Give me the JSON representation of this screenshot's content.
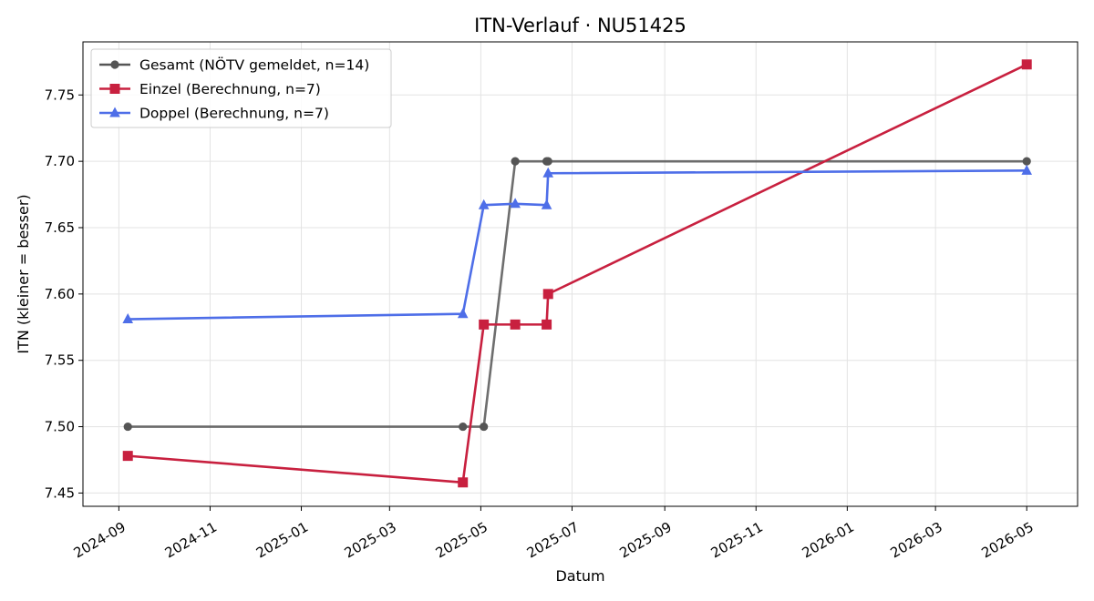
{
  "chart_data": {
    "type": "line",
    "title": "ITN-Verlauf · NU51425",
    "xlabel": "Datum",
    "ylabel": "ITN  (kleiner = besser)",
    "xlim": [
      "2024-08-08",
      "2026-06-04"
    ],
    "ylim": [
      7.44,
      7.79
    ],
    "x_ticks": [
      "2024-09",
      "2024-11",
      "2025-01",
      "2025-03",
      "2025-05",
      "2025-07",
      "2025-09",
      "2025-11",
      "2026-01",
      "2026-03",
      "2026-05"
    ],
    "y_ticks": [
      7.45,
      7.5,
      7.55,
      7.6,
      7.65,
      7.7,
      7.75
    ],
    "y_tick_labels": [
      "7.45",
      "7.50",
      "7.55",
      "7.60",
      "7.65",
      "7.70",
      "7.75"
    ],
    "grid": true,
    "legend_position": "top-left",
    "series": [
      {
        "name": "Gesamt (NÖTV gemeldet, n=14)",
        "color": "#555555",
        "marker": "circle",
        "points": [
          {
            "x": "2024-09-07",
            "y": 7.5
          },
          {
            "x": "2025-04-19",
            "y": 7.5
          },
          {
            "x": "2025-05-03",
            "y": 7.5
          },
          {
            "x": "2025-05-24",
            "y": 7.7
          },
          {
            "x": "2025-06-14",
            "y": 7.7
          },
          {
            "x": "2025-06-15",
            "y": 7.7
          },
          {
            "x": "2026-05-01",
            "y": 7.7
          }
        ]
      },
      {
        "name": "Einzel (Berechnung, n=7)",
        "color": "#c8203f",
        "marker": "square",
        "points": [
          {
            "x": "2024-09-07",
            "y": 7.478
          },
          {
            "x": "2025-04-19",
            "y": 7.458
          },
          {
            "x": "2025-05-03",
            "y": 7.577
          },
          {
            "x": "2025-05-24",
            "y": 7.577
          },
          {
            "x": "2025-06-14",
            "y": 7.577
          },
          {
            "x": "2025-06-15",
            "y": 7.6
          },
          {
            "x": "2026-05-01",
            "y": 7.773
          }
        ]
      },
      {
        "name": "Doppel (Berechnung, n=7)",
        "color": "#4e6ee8",
        "marker": "triangle",
        "points": [
          {
            "x": "2024-09-07",
            "y": 7.581
          },
          {
            "x": "2025-04-19",
            "y": 7.585
          },
          {
            "x": "2025-05-03",
            "y": 7.667
          },
          {
            "x": "2025-05-24",
            "y": 7.668
          },
          {
            "x": "2025-06-14",
            "y": 7.667
          },
          {
            "x": "2025-06-15",
            "y": 7.691
          },
          {
            "x": "2026-05-01",
            "y": 7.693
          }
        ]
      }
    ]
  }
}
